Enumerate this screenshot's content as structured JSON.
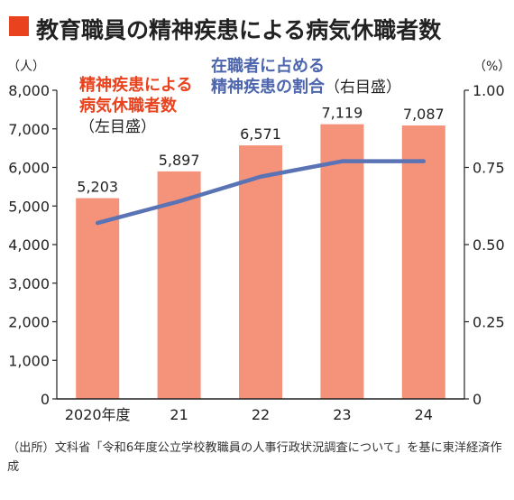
{
  "title": "教育職員の精神疾患による病気休職者数",
  "colors": {
    "accent": "#e8431e",
    "bar": "#f5927a",
    "line": "#5a73b5",
    "label_bar": "#e8431e",
    "label_line": "#4d66ad",
    "axis": "#222222"
  },
  "chart_data": {
    "type": "bar+line",
    "categories": [
      "2020年度",
      "21",
      "22",
      "23",
      "24"
    ],
    "series": [
      {
        "name": "精神疾患による病気休職者数",
        "axis": "left",
        "type": "bar",
        "values": [
          5203,
          5897,
          6571,
          7119,
          7087
        ],
        "labels": [
          "5,203",
          "5,897",
          "6,571",
          "7,119",
          "7,087"
        ]
      },
      {
        "name": "在職者に占める精神疾患の割合",
        "axis": "right",
        "type": "line",
        "values": [
          0.57,
          0.64,
          0.72,
          0.77,
          0.77
        ]
      }
    ],
    "left_axis": {
      "unit": "（人）",
      "ylim": [
        0,
        8000
      ],
      "ticks": [
        0,
        1000,
        2000,
        3000,
        4000,
        5000,
        6000,
        7000,
        8000
      ],
      "tick_labels": [
        "0",
        "1,000",
        "2,000",
        "3,000",
        "4,000",
        "5,000",
        "6,000",
        "7,000",
        "8,000"
      ]
    },
    "right_axis": {
      "unit": "（%）",
      "ylim": [
        0,
        1.0
      ],
      "ticks": [
        0,
        0.25,
        0.5,
        0.75,
        1.0
      ],
      "tick_labels": [
        "0",
        "0.25",
        "0.50",
        "0.75",
        "1.00"
      ]
    },
    "annotations": {
      "bar_label": [
        "精神疾患による",
        "病気休職者数"
      ],
      "bar_axis_note": "（左目盛）",
      "line_label": [
        "在職者に占める",
        "精神疾患の割合"
      ],
      "line_axis_note": "（右目盛）"
    },
    "grid": false
  },
  "source": "（出所）文科省「令和6年度公立学校教職員の人事行政状況調査について」を基に東洋経済作成"
}
